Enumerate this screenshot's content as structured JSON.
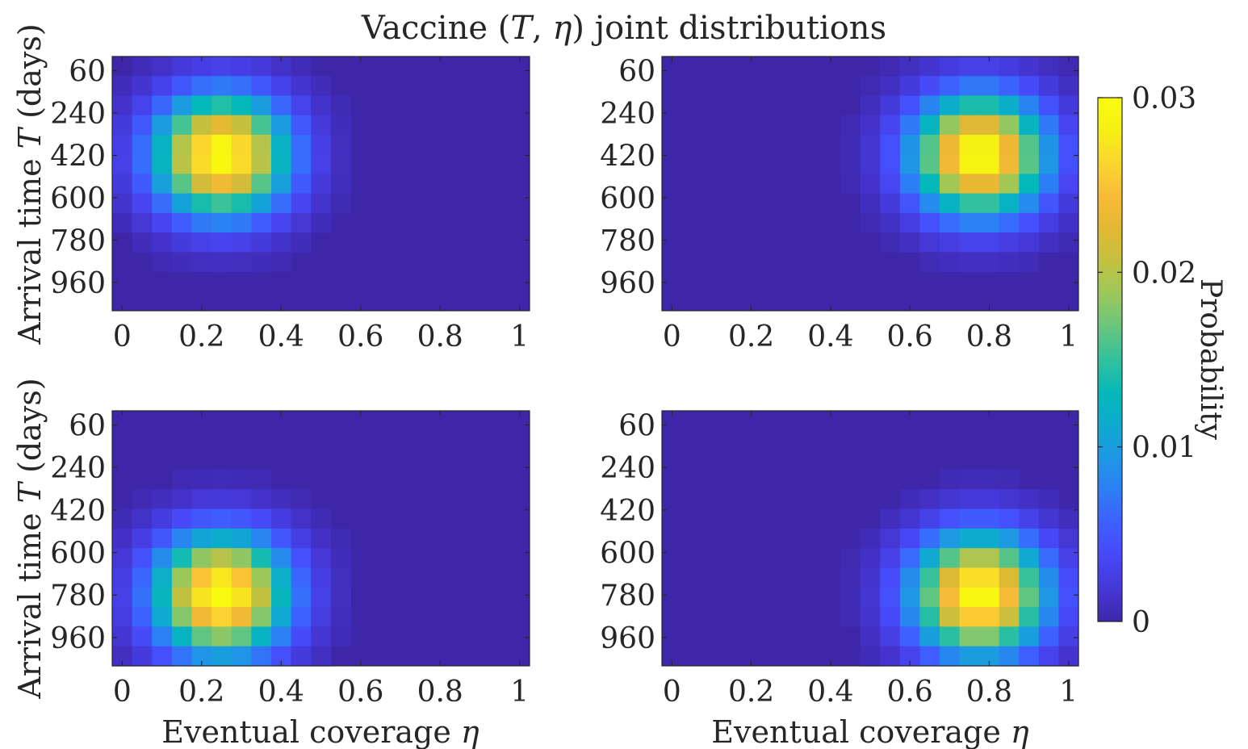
{
  "title_parts": [
    "Vaccine (",
    "T",
    ", ",
    "η",
    ") joint distributions"
  ],
  "ylabel_parts": [
    "Arrival time ",
    "T",
    " (days)"
  ],
  "xlabel_parts": [
    "Eventual coverage ",
    "η"
  ],
  "colorbar": {
    "label": "Probability",
    "ticks": [
      "0",
      "0.01",
      "0.02",
      "0.03"
    ],
    "tick_values": [
      0,
      0.01,
      0.02,
      0.03
    ],
    "range": [
      0,
      0.03
    ],
    "colormap": "parula",
    "colormap_stops": [
      "#3e26a8",
      "#4538d7",
      "#4748f6",
      "#3e5fff",
      "#2d7ef5",
      "#1e97e4",
      "#0eaad0",
      "#05b8b9",
      "#32c19d",
      "#69c67d",
      "#9bc85b",
      "#c3c140",
      "#e2b832",
      "#f8bb38",
      "#fbd52f",
      "#f6f015",
      "#f9fb0e"
    ]
  },
  "chart_data": [
    {
      "type": "heatmap",
      "panel": "top-left",
      "xlabel": "",
      "ylabel": "Arrival time T (days)",
      "xticks": [
        "0",
        "0.2",
        "0.4",
        "0.6",
        "0.8",
        "1"
      ],
      "xtick_values": [
        0,
        0.2,
        0.4,
        0.6,
        0.8,
        1
      ],
      "yticks": [
        "60",
        "240",
        "420",
        "600",
        "780",
        "960"
      ],
      "ytick_values": [
        60,
        240,
        420,
        600,
        780,
        960
      ],
      "xlim": [
        -0.025,
        1.025
      ],
      "ylim": [
        0,
        1080
      ],
      "peak": {
        "eta": 0.25,
        "T": 420,
        "value": 0.03
      }
    },
    {
      "type": "heatmap",
      "panel": "top-right",
      "xlabel": "",
      "ylabel": "",
      "xticks": [
        "0",
        "0.2",
        "0.4",
        "0.6",
        "0.8",
        "1"
      ],
      "xtick_values": [
        0,
        0.2,
        0.4,
        0.6,
        0.8,
        1
      ],
      "yticks": [
        "60",
        "240",
        "420",
        "600",
        "780",
        "960"
      ],
      "ytick_values": [
        60,
        240,
        420,
        600,
        780,
        960
      ],
      "xlim": [
        -0.025,
        1.025
      ],
      "ylim": [
        0,
        1080
      ],
      "peak": {
        "eta": 0.775,
        "T": 420,
        "value": 0.03
      }
    },
    {
      "type": "heatmap",
      "panel": "bottom-left",
      "xlabel": "Eventual coverage η",
      "ylabel": "Arrival time T (days)",
      "xticks": [
        "0",
        "0.2",
        "0.4",
        "0.6",
        "0.8",
        "1"
      ],
      "xtick_values": [
        0,
        0.2,
        0.4,
        0.6,
        0.8,
        1
      ],
      "yticks": [
        "60",
        "240",
        "420",
        "600",
        "780",
        "960"
      ],
      "ytick_values": [
        60,
        240,
        420,
        600,
        780,
        960
      ],
      "xlim": [
        -0.025,
        1.025
      ],
      "ylim": [
        0,
        1080
      ],
      "peak": {
        "eta": 0.25,
        "T": 780,
        "value": 0.03
      }
    },
    {
      "type": "heatmap",
      "panel": "bottom-right",
      "xlabel": "Eventual coverage η",
      "ylabel": "",
      "xticks": [
        "0",
        "0.2",
        "0.4",
        "0.6",
        "0.8",
        "1"
      ],
      "xtick_values": [
        0,
        0.2,
        0.4,
        0.6,
        0.8,
        1
      ],
      "yticks": [
        "60",
        "240",
        "420",
        "600",
        "780",
        "960"
      ],
      "ytick_values": [
        60,
        240,
        420,
        600,
        780,
        960
      ],
      "xlim": [
        -0.025,
        1.025
      ],
      "ylim": [
        0,
        1080
      ],
      "peak": {
        "eta": 0.775,
        "T": 780,
        "value": 0.03
      }
    }
  ]
}
